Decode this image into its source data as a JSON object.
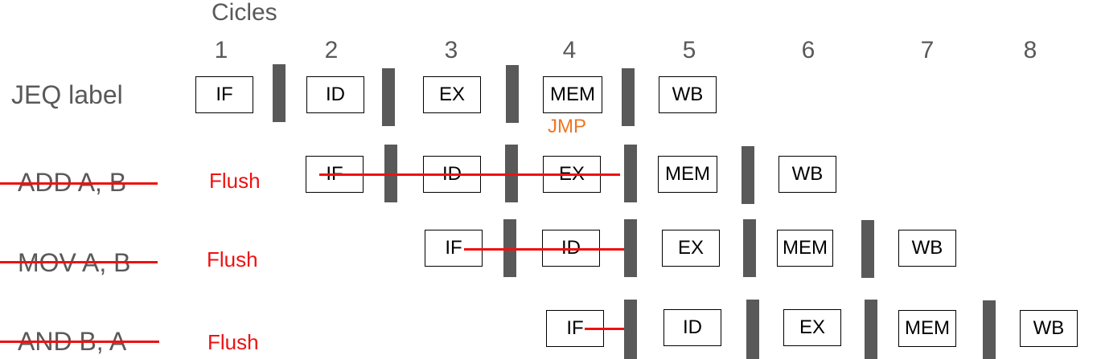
{
  "title": "Cicles",
  "cycles": [
    "1",
    "2",
    "3",
    "4",
    "5",
    "6",
    "7",
    "8"
  ],
  "rows": [
    {
      "instruction": "JEQ label",
      "flushed": false,
      "stages": [
        "IF",
        "ID",
        "EX",
        "MEM",
        "WB"
      ],
      "note": "JMP"
    },
    {
      "instruction": "ADD A, B",
      "flushed": true,
      "flush_label": "Flush",
      "stages": [
        "IF",
        "ID",
        "EX",
        "MEM",
        "WB"
      ]
    },
    {
      "instruction": "MOV A, B",
      "flushed": true,
      "flush_label": "Flush",
      "stages": [
        "IF",
        "ID",
        "EX",
        "MEM",
        "WB"
      ]
    },
    {
      "instruction": "AND B, A",
      "flushed": true,
      "flush_label": "Flush",
      "stages": [
        "IF",
        "ID",
        "EX",
        "MEM",
        "WB"
      ]
    }
  ],
  "colors": {
    "flush": "#ee1111",
    "jmp": "#ee7722",
    "bar": "#595959",
    "text": "#595959"
  }
}
